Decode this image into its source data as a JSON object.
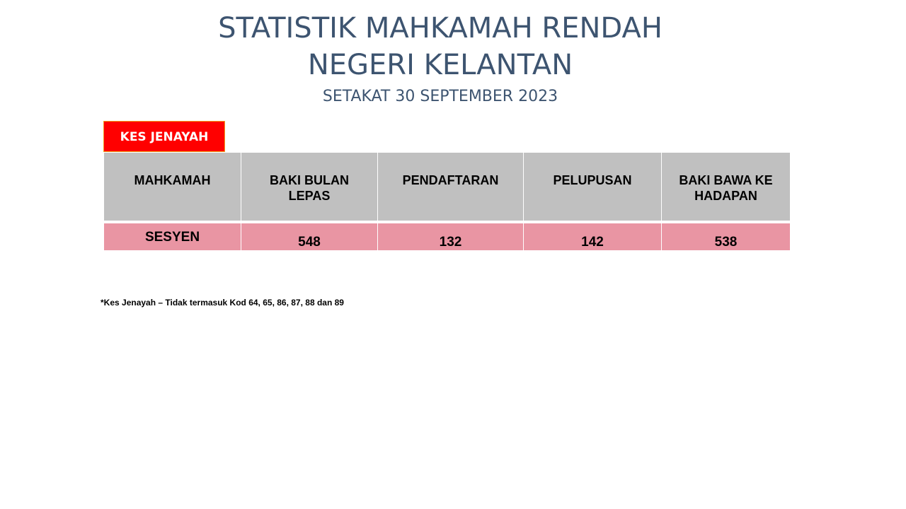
{
  "header": {
    "title_line1": "STATISTIK MAHKAMAH RENDAH",
    "title_line2": "NEGERI KELANTAN",
    "subtitle": "SETAKAT 30 SEPTEMBER 2023"
  },
  "category_tab": {
    "label": "KES JENAYAH",
    "color": "#ff0000"
  },
  "table": {
    "columns": [
      "MAHKAMAH",
      "BAKI BULAN LEPAS",
      "PENDAFTARAN",
      "PELUPUSAN",
      "BAKI BAWA KE HADAPAN"
    ],
    "rows": [
      {
        "court": "SESYEN",
        "baki_bulan_lepas": "548",
        "pendaftaran": "132",
        "pelupusan": "142",
        "baki_bawa_ke_hadapan": "538"
      }
    ],
    "header_color": "#c0c0c0",
    "row_color": "#e995a3"
  },
  "footnote": "*Kes Jenayah – Tidak termasuk Kod 64, 65, 86, 87, 88 dan 89"
}
